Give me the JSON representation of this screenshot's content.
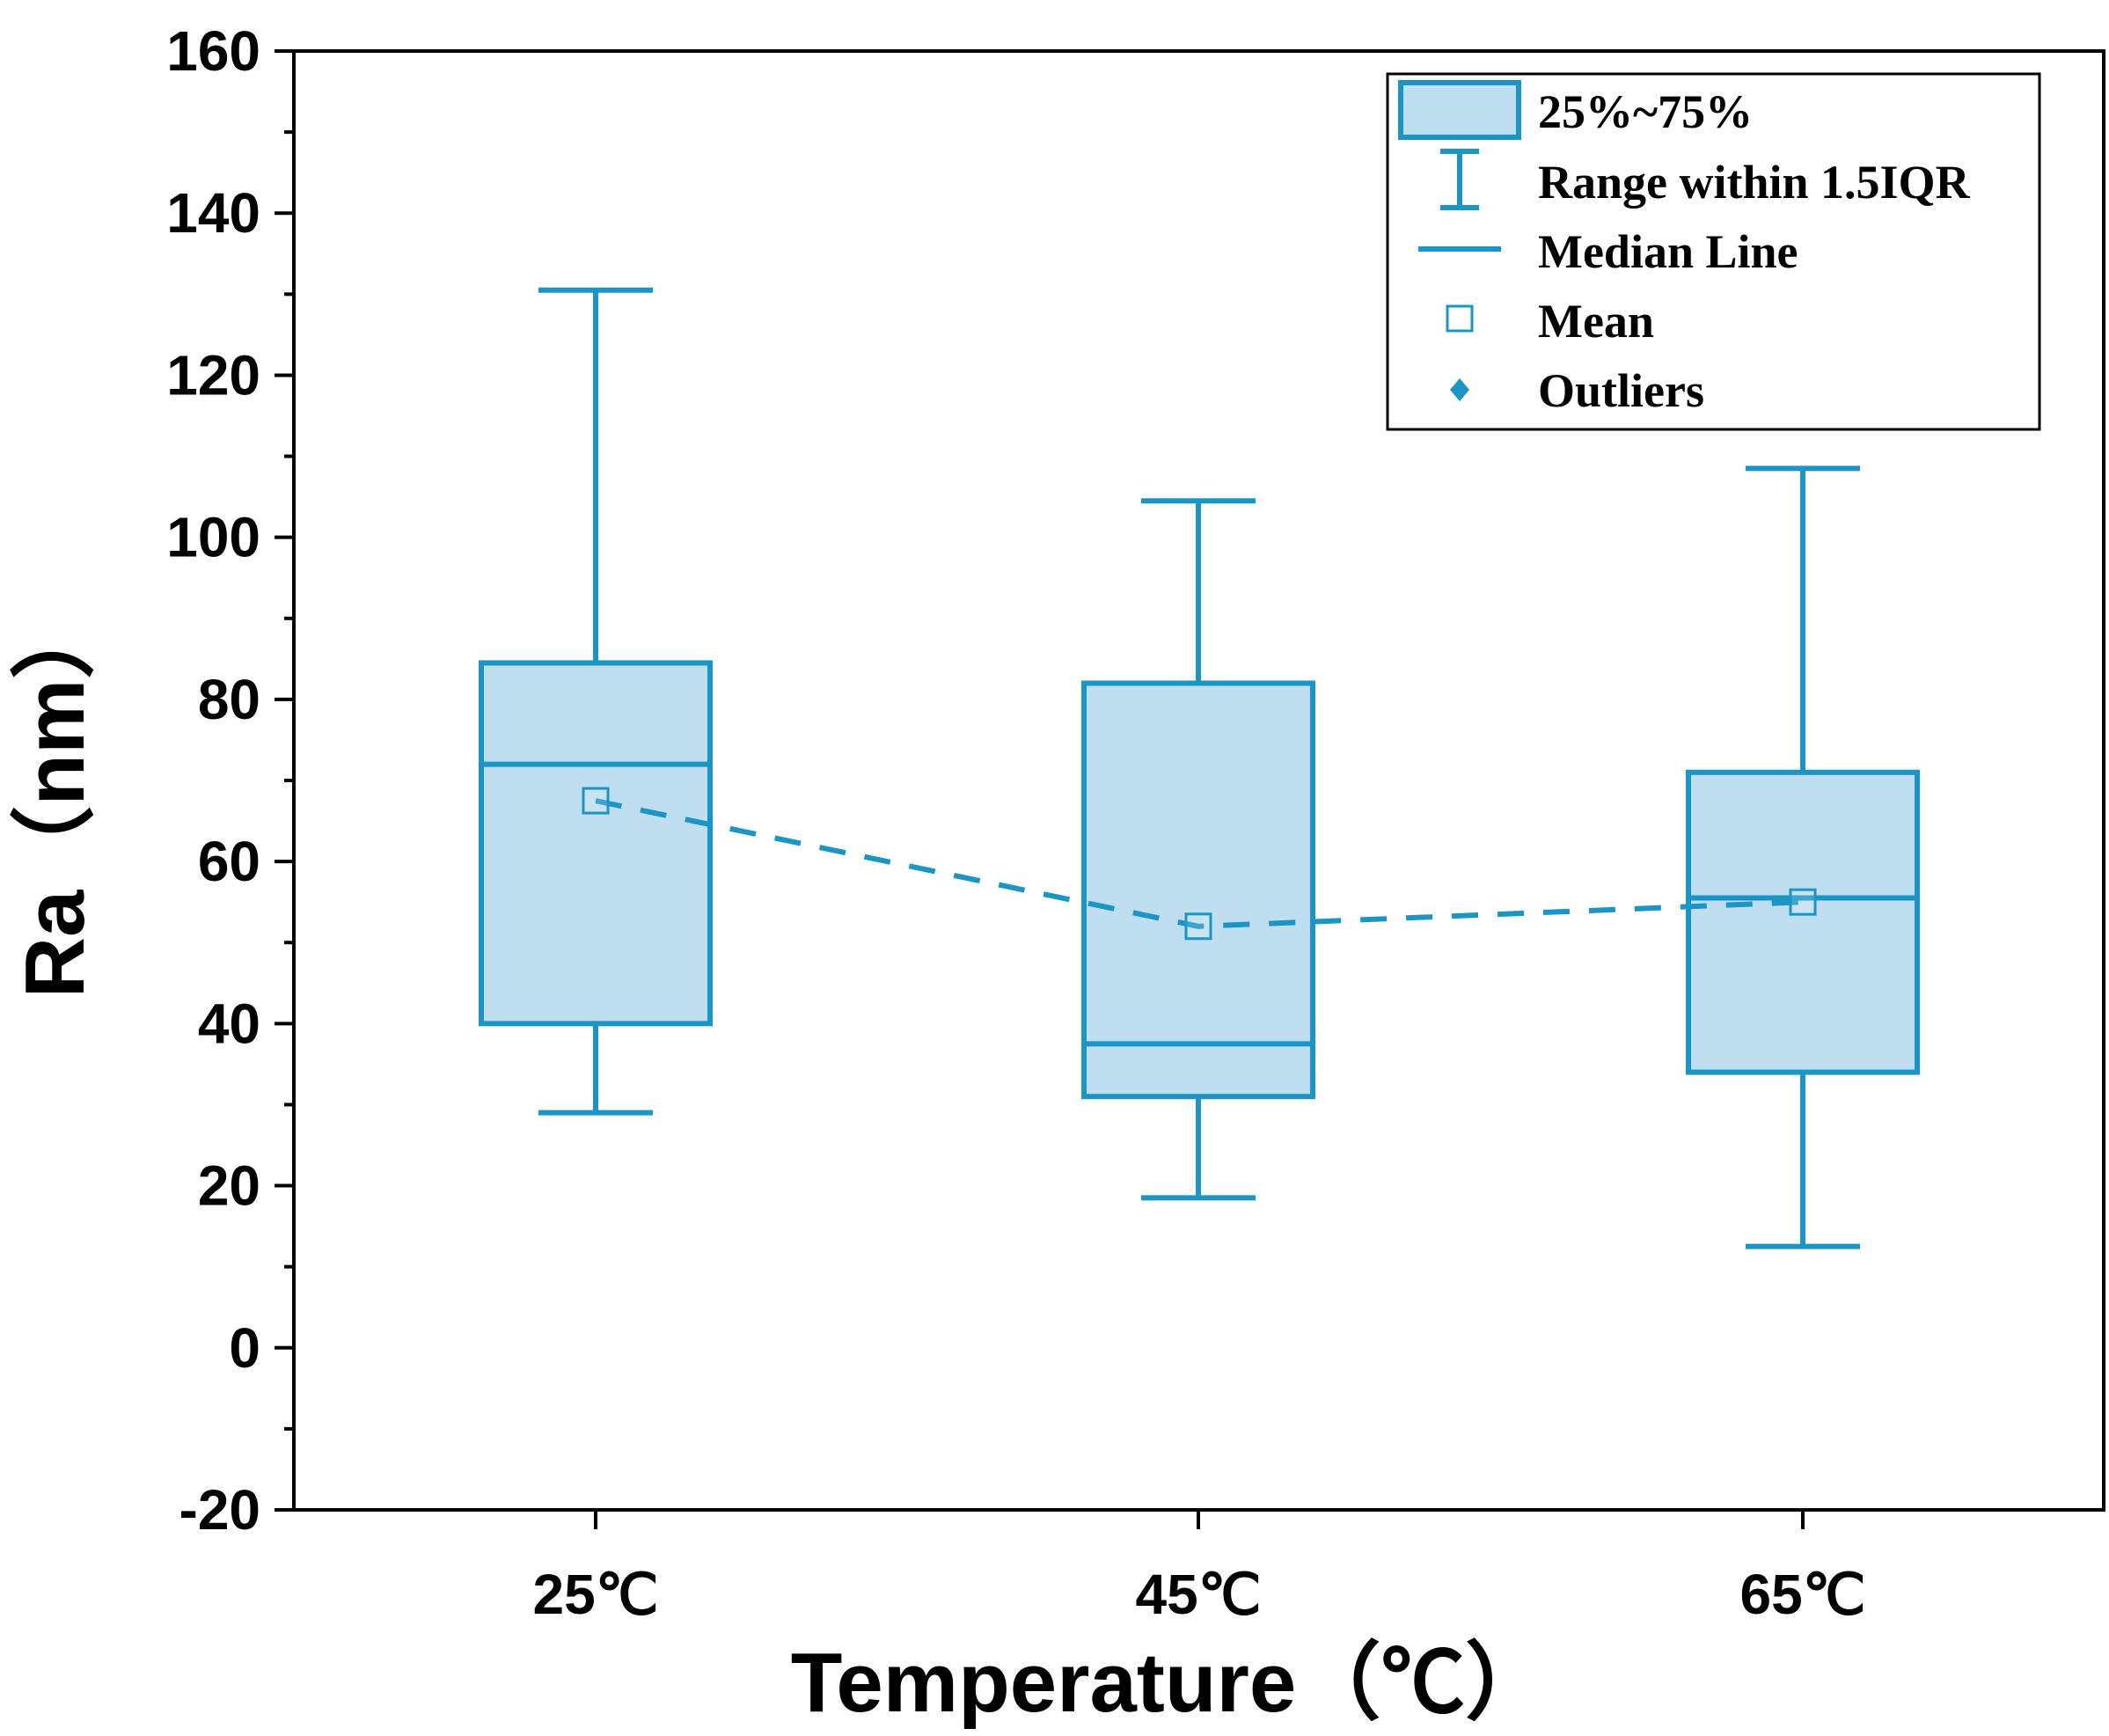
{
  "chart_data": {
    "type": "box",
    "title": "",
    "xlabel": "Temperature（℃）",
    "ylabel": "Ra（nm）",
    "categories": [
      "25℃",
      "45℃",
      "65℃"
    ],
    "ylim": [
      -20,
      160
    ],
    "yticks": [
      -20,
      0,
      20,
      40,
      60,
      80,
      100,
      120,
      140,
      160
    ],
    "ytick_labels": [
      "-20",
      "0",
      "20",
      "40",
      "60",
      "80",
      "100",
      "120",
      "140",
      "160"
    ],
    "boxes": [
      {
        "category": "25℃",
        "whisker_low": 29,
        "q1": 40,
        "median": 72,
        "q3": 84.5,
        "whisker_high": 130.5,
        "mean": 67.5
      },
      {
        "category": "45℃",
        "whisker_low": 18.5,
        "q1": 31,
        "median": 37.5,
        "q3": 82,
        "whisker_high": 104.5,
        "mean": 52
      },
      {
        "category": "65℃",
        "whisker_low": 12.5,
        "q1": 34,
        "median": 55.5,
        "q3": 71,
        "whisker_high": 108.5,
        "mean": 55
      }
    ],
    "mean_line": {
      "style": "dashed",
      "connects": "mean"
    },
    "legend": {
      "position": "top-right",
      "entries": [
        "25%~75%",
        "Range within 1.5IQR",
        "Median Line",
        "Mean",
        "Outliers"
      ]
    },
    "colors": {
      "stroke": "#1b95c5",
      "fill": "#bfdff0",
      "outlier": "#1b95c5",
      "axis": "#000000"
    }
  }
}
